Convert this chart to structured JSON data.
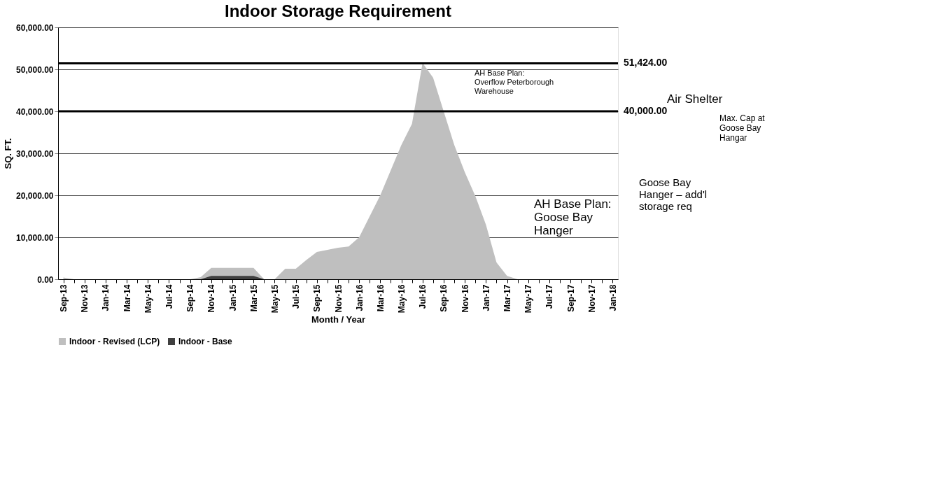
{
  "chart_data": {
    "type": "area",
    "title": "Indoor Storage Requirement",
    "xlabel": "Month / Year",
    "ylabel": "SQ. FT.",
    "categories": [
      "Sep-13",
      null,
      "Nov-13",
      null,
      "Jan-14",
      null,
      "Mar-14",
      null,
      "May-14",
      null,
      "Jul-14",
      null,
      "Sep-14",
      null,
      "Nov-14",
      null,
      "Jan-15",
      null,
      "Mar-15",
      null,
      "May-15",
      null,
      "Jul-15",
      null,
      "Sep-15",
      null,
      "Nov-15",
      null,
      "Jan-16",
      null,
      "Mar-16",
      null,
      "May-16",
      null,
      "Jul-16",
      null,
      "Sep-16",
      null,
      "Nov-16",
      null,
      "Jan-17",
      null,
      "Mar-17",
      null,
      "May-17",
      null,
      "Jul-17",
      null,
      "Sep-17",
      null,
      "Nov-17",
      null,
      "Jan-18"
    ],
    "series": [
      {
        "name": "Indoor - Revised (LCP)",
        "color": "#bfbfbf",
        "values": [
          400,
          0,
          0,
          0,
          0,
          0,
          0,
          0,
          0,
          0,
          0,
          0,
          0,
          500,
          2700,
          2700,
          2700,
          2700,
          2700,
          0,
          0,
          2500,
          2500,
          4600,
          6500,
          7000,
          7500,
          7800,
          10000,
          15000,
          20000,
          26000,
          32000,
          37000,
          51500,
          48000,
          40000,
          32000,
          25500,
          19800,
          13000,
          4000,
          800,
          0,
          0,
          0,
          0,
          0,
          0,
          0,
          0,
          0,
          0
        ]
      },
      {
        "name": "Indoor - Base",
        "color": "#404040",
        "values": [
          0,
          0,
          0,
          0,
          0,
          0,
          0,
          0,
          0,
          0,
          0,
          0,
          0,
          0,
          800,
          800,
          800,
          800,
          800,
          0,
          0,
          0,
          0,
          0,
          0,
          0,
          0,
          0,
          0,
          0,
          0,
          0,
          0,
          0,
          0,
          0,
          0,
          0,
          0,
          0,
          0,
          0,
          0,
          0,
          0,
          0,
          0,
          0,
          0,
          0,
          0,
          0,
          0
        ]
      }
    ],
    "ylim": [
      0,
      60000
    ],
    "yticks": [
      {
        "value": 0,
        "label": "0.00"
      },
      {
        "value": 10000,
        "label": "10,000.00"
      },
      {
        "value": 20000,
        "label": "20,000.00"
      },
      {
        "value": 30000,
        "label": "30,000.00"
      },
      {
        "value": 40000,
        "label": "40,000.00"
      },
      {
        "value": 50000,
        "label": "50,000.00"
      },
      {
        "value": 60000,
        "label": "60,000.00"
      }
    ],
    "ref_lines": [
      {
        "axis": "y",
        "value": 51424,
        "label": "51,424.00",
        "color": "#000000"
      },
      {
        "axis": "y",
        "value": 40000,
        "label": "40,000.00",
        "color": "#000000"
      }
    ],
    "annotations": [
      "Air Shelter",
      "Max. Cap at\nGoose Bay\nHangar",
      "AH Base Plan:\nOverflow Peterborough\nWarehouse",
      "AH Base Plan:\nGoose Bay\nHanger",
      "Goose Bay\nHanger – add'l\nstorage req"
    ],
    "grid": "y",
    "legend": "bottom"
  }
}
